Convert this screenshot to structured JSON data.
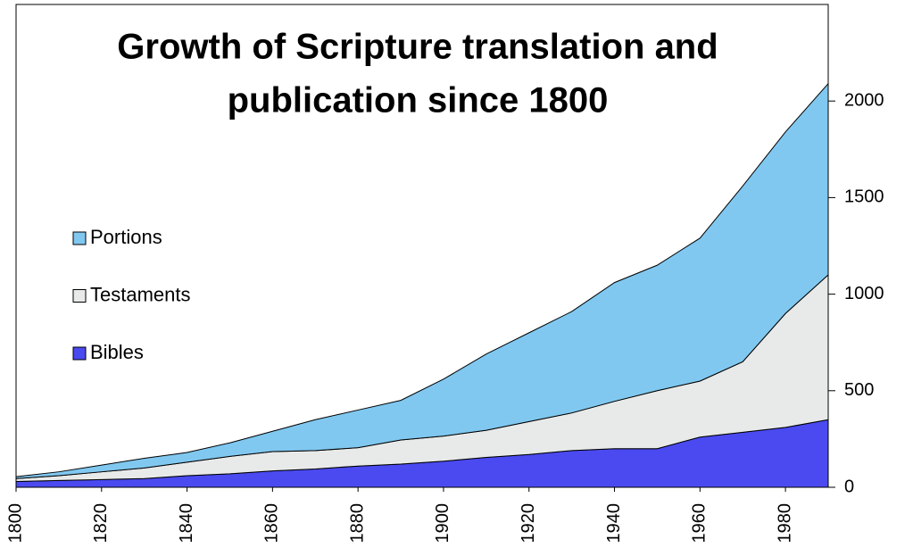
{
  "chart_data": {
    "type": "stacked_area",
    "title": [
      "Growth of Scripture translation and",
      "publication since 1800"
    ],
    "x": [
      1800,
      1810,
      1820,
      1830,
      1840,
      1850,
      1860,
      1870,
      1880,
      1890,
      1900,
      1910,
      1920,
      1930,
      1940,
      1950,
      1960,
      1970,
      1980,
      1990
    ],
    "series": [
      {
        "name": "Bibles",
        "color": "#4a4af0",
        "values": [
          30,
          35,
          40,
          45,
          60,
          70,
          85,
          95,
          110,
          120,
          135,
          155,
          170,
          190,
          200,
          200,
          260,
          285,
          310,
          350
        ]
      },
      {
        "name": "Testaments",
        "color": "#e8eaea",
        "values": [
          15,
          25,
          40,
          55,
          70,
          90,
          100,
          95,
          95,
          125,
          130,
          140,
          170,
          195,
          245,
          300,
          290,
          365,
          590,
          750
        ]
      },
      {
        "name": "Portions",
        "color": "#80c8f0",
        "values": [
          10,
          20,
          35,
          50,
          50,
          70,
          105,
          160,
          195,
          205,
          295,
          395,
          460,
          525,
          615,
          650,
          740,
          910,
          940,
          990
        ]
      }
    ],
    "xlim": [
      1800,
      1990
    ],
    "xticks": [
      1800,
      1820,
      1840,
      1860,
      1880,
      1900,
      1920,
      1940,
      1960,
      1980
    ],
    "ylim": [
      0,
      2500
    ],
    "yticks": [
      0,
      500,
      1000,
      1500,
      2000
    ],
    "y_axis_side": "right",
    "legend": "left"
  }
}
